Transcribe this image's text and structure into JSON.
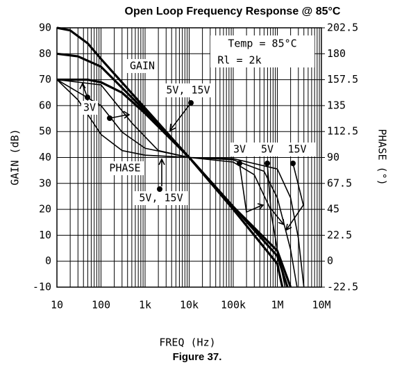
{
  "chart_data": {
    "type": "line",
    "title": "Open Loop Frequency Response @ 85°C",
    "xlabel": "FREQ (Hz)",
    "ylabel": "GAIN (dB)",
    "y2label": "PHASE (°)",
    "caption": "Figure 37.",
    "xscale": "log",
    "grid": true,
    "xlim": [
      10,
      10000000
    ],
    "xticks": [
      10,
      100,
      {
        "value": 1000,
        "label": "1k"
      },
      {
        "value": 10000,
        "label": "10k"
      },
      {
        "value": 100000,
        "label": "100k"
      },
      {
        "value": 1000000,
        "label": "1M"
      },
      {
        "value": 10000000,
        "label": "10M"
      }
    ],
    "ylim": [
      -10,
      90
    ],
    "yticks": [
      -10,
      0,
      10,
      20,
      30,
      40,
      50,
      60,
      70,
      80,
      90
    ],
    "y2lim": [
      -22.5,
      202.5
    ],
    "y2ticks": [
      -22.5,
      0,
      22.5,
      45,
      67.5,
      90,
      112.5,
      135,
      157.5,
      180,
      202.5
    ],
    "annotations": [
      "Temp = 85°C",
      "Rl = 2k",
      "GAIN",
      "5V, 15V",
      "3V",
      "PHASE",
      "5V, 15V",
      "3V",
      "5V",
      "15V"
    ],
    "series": [
      {
        "name": "Gain 15V",
        "color": "#000000",
        "x": [
          10,
          20,
          50,
          100,
          1000,
          10000,
          100000,
          1000000,
          1300000
        ],
        "values": [
          90,
          89,
          84,
          78,
          59,
          40,
          20,
          -1,
          -10
        ]
      },
      {
        "name": "Gain 5V",
        "color": "#000000",
        "x": [
          10,
          30,
          100,
          1000,
          10000,
          100000,
          1000000,
          2000000
        ],
        "values": [
          80,
          79,
          75,
          58,
          40,
          21,
          4,
          -10
        ]
      },
      {
        "name": "Gain 3V",
        "color": "#000000",
        "x": [
          10,
          50,
          100,
          300,
          1000,
          10000,
          100000,
          1000000,
          1700000
        ],
        "values": [
          70,
          70,
          69,
          65,
          57,
          40,
          21,
          2,
          -10
        ]
      },
      {
        "name": "Phase 3V",
        "color": "#000000",
        "axis": "y2",
        "x": [
          10,
          30,
          100,
          300,
          1000,
          10000,
          100000,
          300000,
          700000,
          1000000,
          1500000
        ],
        "values": [
          157.5,
          140,
          110,
          96,
          92,
          90,
          86,
          75,
          45,
          10,
          -22.5
        ]
      },
      {
        "name": "Phase 5V",
        "color": "#000000",
        "axis": "y2",
        "x": [
          10,
          100,
          300,
          1000,
          10000,
          100000,
          500000,
          1000000,
          2000000,
          2800000
        ],
        "values": [
          157.5,
          135,
          112,
          98,
          90,
          88,
          78,
          55,
          10,
          -22.5
        ]
      },
      {
        "name": "Phase 15V",
        "color": "#000000",
        "axis": "y2",
        "x": [
          10,
          100,
          500,
          2000,
          10000,
          100000,
          1000000,
          2000000,
          3000000,
          4000000
        ],
        "values": [
          157.5,
          153,
          120,
          96,
          90,
          89,
          80,
          55,
          20,
          -22.5
        ]
      }
    ]
  }
}
